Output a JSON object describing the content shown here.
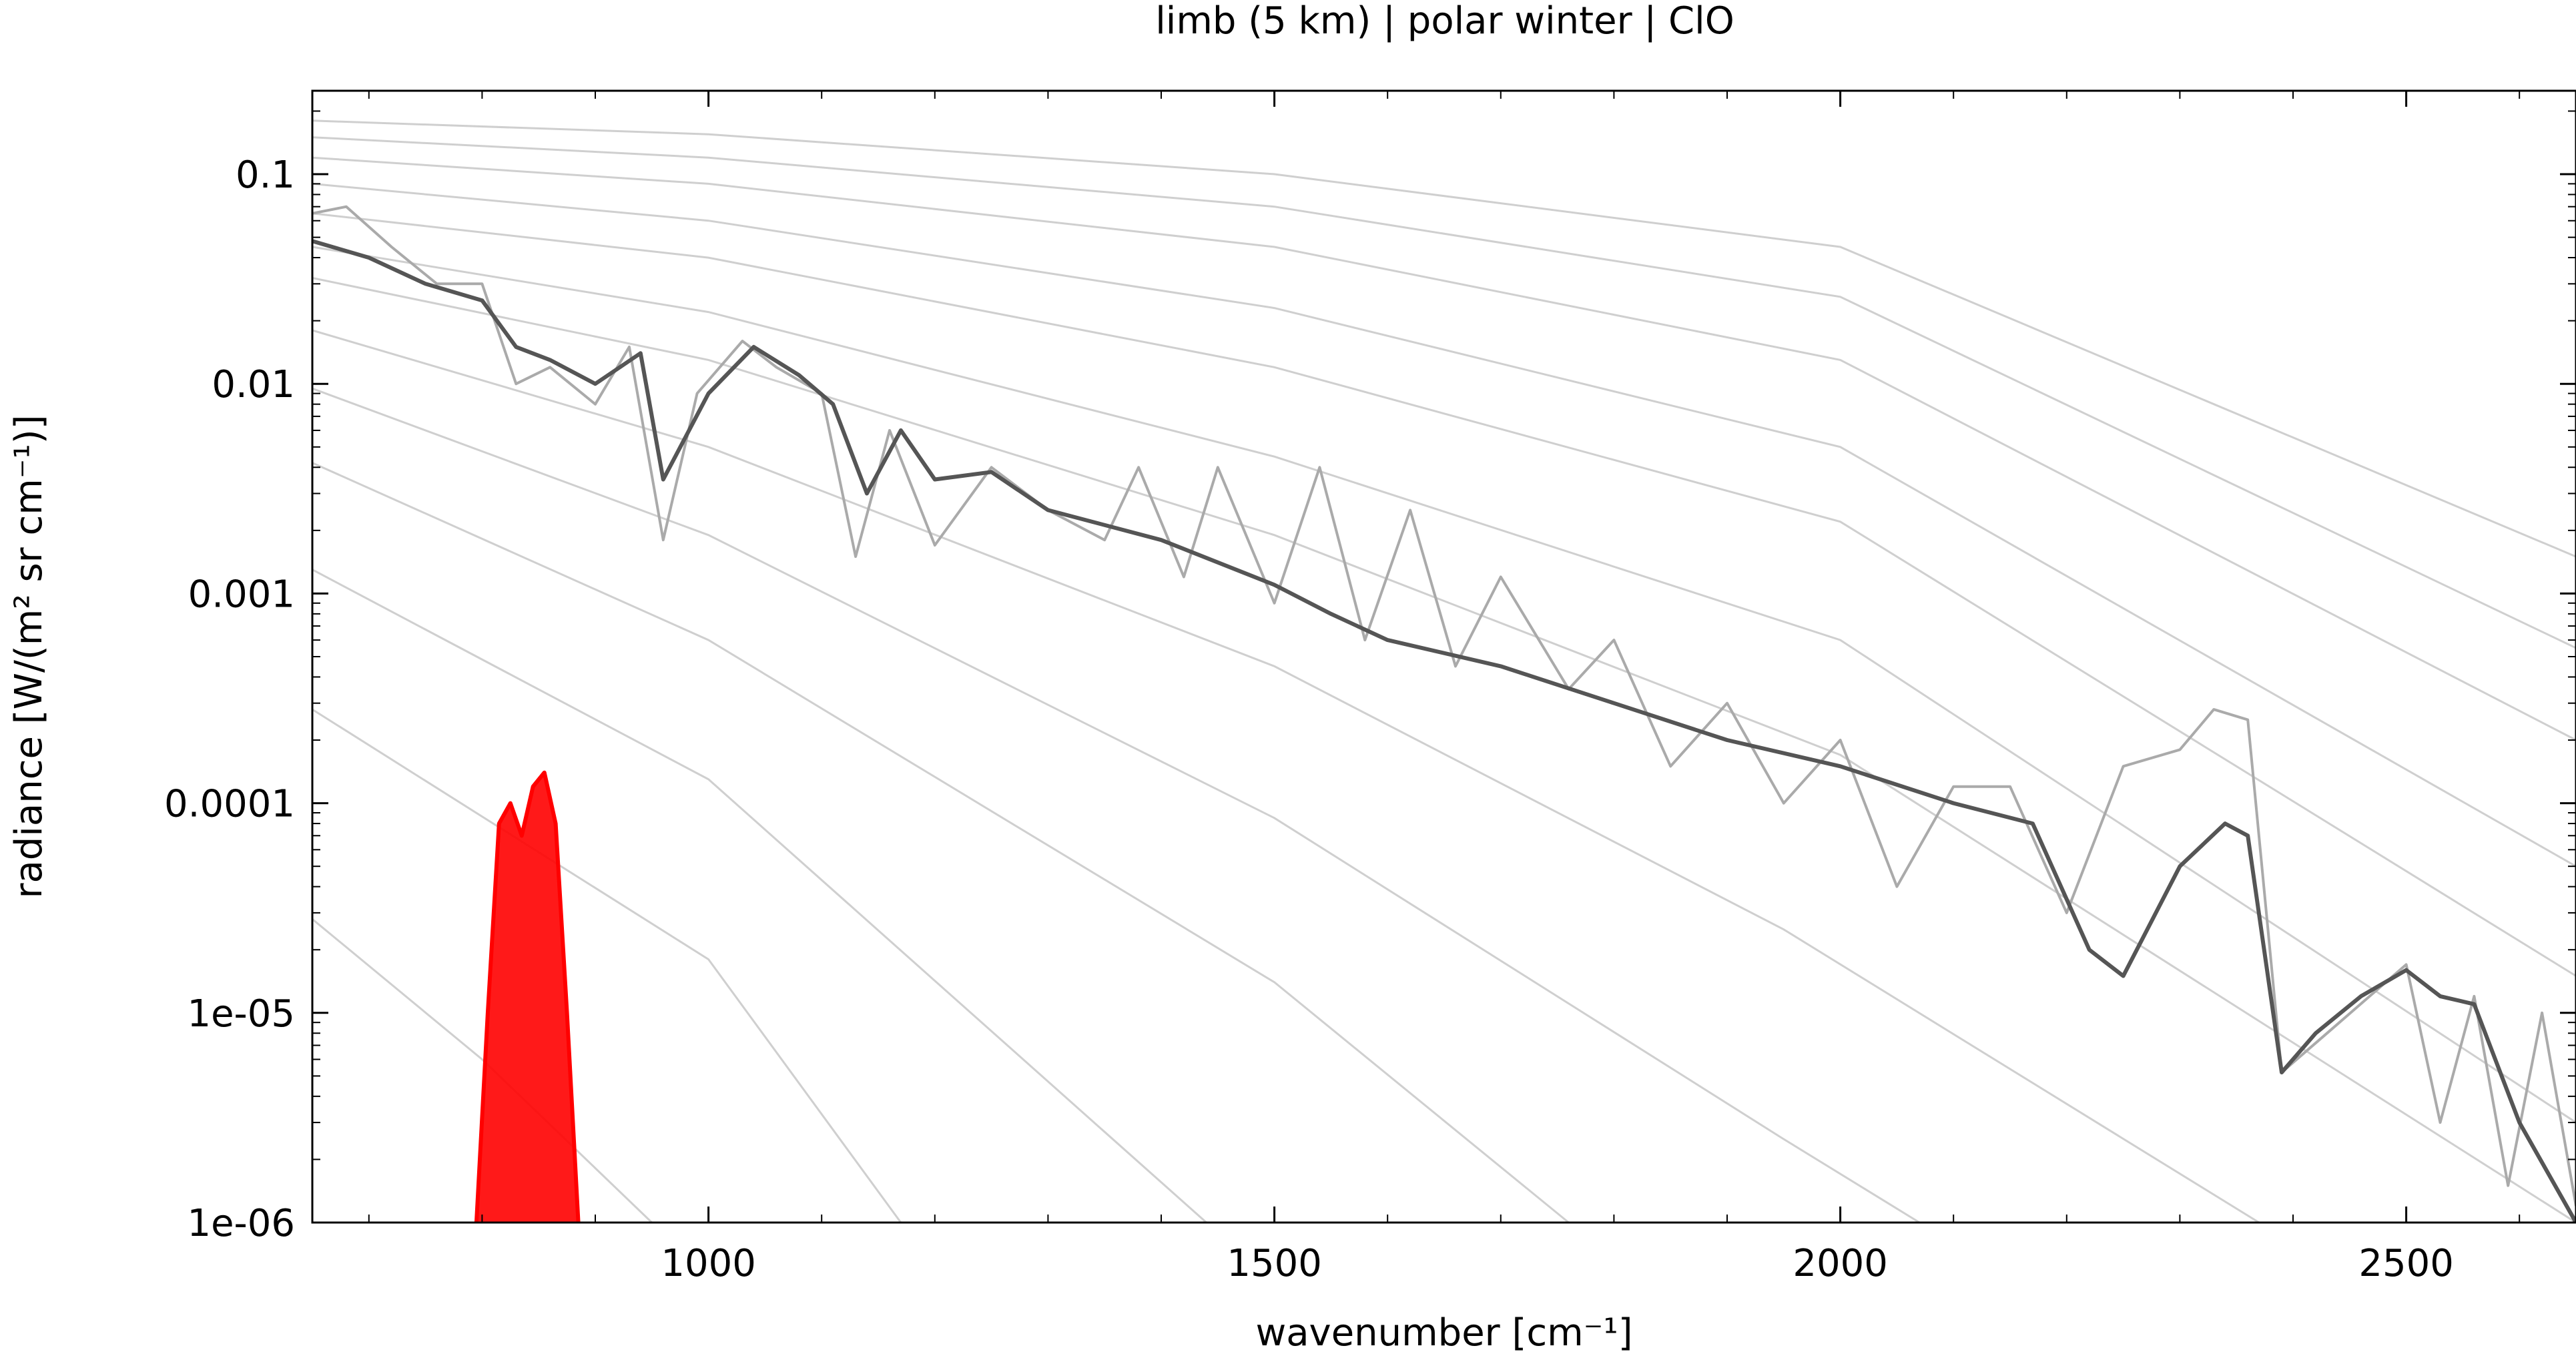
{
  "chart_data": {
    "type": "line",
    "title": "limb (5 km) | polar winter | ClO",
    "xlabel": "wavenumber [cm⁻¹]",
    "ylabel": "radiance [W/(m² sr cm⁻¹)]",
    "xlim": [
      650,
      2650
    ],
    "ylim": [
      1e-06,
      0.25
    ],
    "yscale": "log",
    "grid": false,
    "xticks": [
      1000,
      1500,
      2000,
      2500
    ],
    "xtick_labels": [
      "1000",
      "1500",
      "2000",
      "2500"
    ],
    "yticks": [
      1e-06,
      1e-05,
      0.0001,
      0.001,
      0.01,
      0.1
    ],
    "ytick_labels": [
      "1e-06",
      "1e-05",
      "0.0001",
      "0.001",
      "0.01",
      "0.1"
    ],
    "colors": {
      "spectrum_dark": "#555555",
      "spectrum_light": "#aaaaaa",
      "reference": "#cfcfcf",
      "clo": "#ff0000"
    },
    "reference_curves": [
      {
        "points": [
          [
            650,
            0.18
          ],
          [
            1000,
            0.155
          ],
          [
            1500,
            0.1
          ],
          [
            2000,
            0.045
          ],
          [
            2650,
            0.0015
          ]
        ]
      },
      {
        "points": [
          [
            650,
            0.15
          ],
          [
            1000,
            0.12
          ],
          [
            1500,
            0.07
          ],
          [
            2000,
            0.026
          ],
          [
            2650,
            0.00055
          ]
        ]
      },
      {
        "points": [
          [
            650,
            0.12
          ],
          [
            1000,
            0.09
          ],
          [
            1500,
            0.045
          ],
          [
            2000,
            0.013
          ],
          [
            2650,
            0.0002
          ]
        ]
      },
      {
        "points": [
          [
            650,
            0.09
          ],
          [
            1000,
            0.06
          ],
          [
            1500,
            0.023
          ],
          [
            2000,
            0.005
          ],
          [
            2650,
            5e-05
          ]
        ]
      },
      {
        "points": [
          [
            650,
            0.065
          ],
          [
            1000,
            0.04
          ],
          [
            1500,
            0.012
          ],
          [
            2000,
            0.0022
          ],
          [
            2650,
            1.5e-05
          ]
        ]
      },
      {
        "points": [
          [
            650,
            0.045
          ],
          [
            1000,
            0.022
          ],
          [
            1500,
            0.0045
          ],
          [
            2000,
            0.0006
          ],
          [
            2650,
            3e-06
          ]
        ]
      },
      {
        "points": [
          [
            650,
            0.032
          ],
          [
            1000,
            0.013
          ],
          [
            1500,
            0.0019
          ],
          [
            2000,
            0.00017
          ],
          [
            2650,
            6e-07
          ]
        ]
      },
      {
        "points": [
          [
            650,
            0.018
          ],
          [
            1000,
            0.005
          ],
          [
            1500,
            0.00045
          ],
          [
            1950,
            2.5e-05
          ],
          [
            2370,
            1e-06
          ]
        ]
      },
      {
        "points": [
          [
            650,
            0.0095
          ],
          [
            1000,
            0.0019
          ],
          [
            1500,
            8.5e-05
          ],
          [
            1950,
            2.5e-06
          ],
          [
            2070,
            1e-06
          ]
        ]
      },
      {
        "points": [
          [
            650,
            0.0042
          ],
          [
            1000,
            0.0006
          ],
          [
            1500,
            1.4e-05
          ],
          [
            1760,
            1e-06
          ]
        ]
      },
      {
        "points": [
          [
            650,
            0.0013
          ],
          [
            1000,
            0.00013
          ],
          [
            1440,
            1e-06
          ]
        ]
      },
      {
        "points": [
          [
            650,
            0.00028
          ],
          [
            1000,
            1.8e-05
          ],
          [
            1170,
            1e-06
          ]
        ]
      },
      {
        "points": [
          [
            650,
            2.8e-05
          ],
          [
            800,
            6e-06
          ],
          [
            950,
            1e-06
          ]
        ]
      }
    ],
    "series": [
      {
        "style": "spectrum_light",
        "points": [
          [
            650,
            0.065
          ],
          [
            680,
            0.07
          ],
          [
            720,
            0.045
          ],
          [
            760,
            0.03
          ],
          [
            800,
            0.03
          ],
          [
            830,
            0.01
          ],
          [
            860,
            0.012
          ],
          [
            900,
            0.008
          ],
          [
            930,
            0.015
          ],
          [
            960,
            0.0018
          ],
          [
            990,
            0.009
          ],
          [
            1030,
            0.016
          ],
          [
            1060,
            0.012
          ],
          [
            1100,
            0.009
          ],
          [
            1130,
            0.0015
          ],
          [
            1160,
            0.006
          ],
          [
            1200,
            0.0017
          ],
          [
            1250,
            0.004
          ],
          [
            1300,
            0.0025
          ],
          [
            1350,
            0.0018
          ],
          [
            1380,
            0.004
          ],
          [
            1420,
            0.0012
          ],
          [
            1450,
            0.004
          ],
          [
            1500,
            0.0009
          ],
          [
            1540,
            0.004
          ],
          [
            1580,
            0.0006
          ],
          [
            1620,
            0.0025
          ],
          [
            1660,
            0.00045
          ],
          [
            1700,
            0.0012
          ],
          [
            1760,
            0.00035
          ],
          [
            1800,
            0.0006
          ],
          [
            1850,
            0.00015
          ],
          [
            1900,
            0.0003
          ],
          [
            1950,
            0.0001
          ],
          [
            2000,
            0.0002
          ],
          [
            2050,
            4e-05
          ],
          [
            2100,
            0.00012
          ],
          [
            2150,
            0.00012
          ],
          [
            2200,
            3e-05
          ],
          [
            2250,
            0.00015
          ],
          [
            2300,
            0.00018
          ],
          [
            2330,
            0.00028
          ],
          [
            2360,
            0.00025
          ],
          [
            2390,
            5.2e-06
          ],
          [
            2430,
            8e-06
          ],
          [
            2500,
            1.7e-05
          ],
          [
            2530,
            3e-06
          ],
          [
            2560,
            1.2e-05
          ],
          [
            2590,
            1.5e-06
          ],
          [
            2620,
            1e-05
          ],
          [
            2650,
            1.2e-06
          ]
        ]
      },
      {
        "style": "spectrum_dark",
        "points": [
          [
            650,
            0.048
          ],
          [
            700,
            0.04
          ],
          [
            750,
            0.03
          ],
          [
            800,
            0.025
          ],
          [
            830,
            0.015
          ],
          [
            860,
            0.013
          ],
          [
            900,
            0.01
          ],
          [
            940,
            0.014
          ],
          [
            960,
            0.0035
          ],
          [
            1000,
            0.009
          ],
          [
            1040,
            0.015
          ],
          [
            1080,
            0.011
          ],
          [
            1110,
            0.008
          ],
          [
            1140,
            0.003
          ],
          [
            1170,
            0.006
          ],
          [
            1200,
            0.0035
          ],
          [
            1250,
            0.0038
          ],
          [
            1300,
            0.0025
          ],
          [
            1400,
            0.0018
          ],
          [
            1500,
            0.0011
          ],
          [
            1550,
            0.0008
          ],
          [
            1600,
            0.0006
          ],
          [
            1700,
            0.00045
          ],
          [
            1800,
            0.0003
          ],
          [
            1900,
            0.0002
          ],
          [
            2000,
            0.00015
          ],
          [
            2100,
            0.0001
          ],
          [
            2170,
            8e-05
          ],
          [
            2220,
            2e-05
          ],
          [
            2250,
            1.5e-05
          ],
          [
            2300,
            5e-05
          ],
          [
            2340,
            8e-05
          ],
          [
            2360,
            7e-05
          ],
          [
            2390,
            5.2e-06
          ],
          [
            2420,
            8e-06
          ],
          [
            2460,
            1.2e-05
          ],
          [
            2500,
            1.6e-05
          ],
          [
            2530,
            1.2e-05
          ],
          [
            2560,
            1.1e-05
          ],
          [
            2600,
            3e-06
          ],
          [
            2650,
            1e-06
          ]
        ]
      },
      {
        "style": "clo",
        "points": [
          [
            795,
            1e-06
          ],
          [
            805,
            1e-05
          ],
          [
            815,
            8e-05
          ],
          [
            825,
            0.0001
          ],
          [
            835,
            7e-05
          ],
          [
            845,
            0.00012
          ],
          [
            855,
            0.00014
          ],
          [
            865,
            8e-05
          ],
          [
            875,
            1e-05
          ],
          [
            885,
            1e-06
          ]
        ]
      }
    ]
  }
}
